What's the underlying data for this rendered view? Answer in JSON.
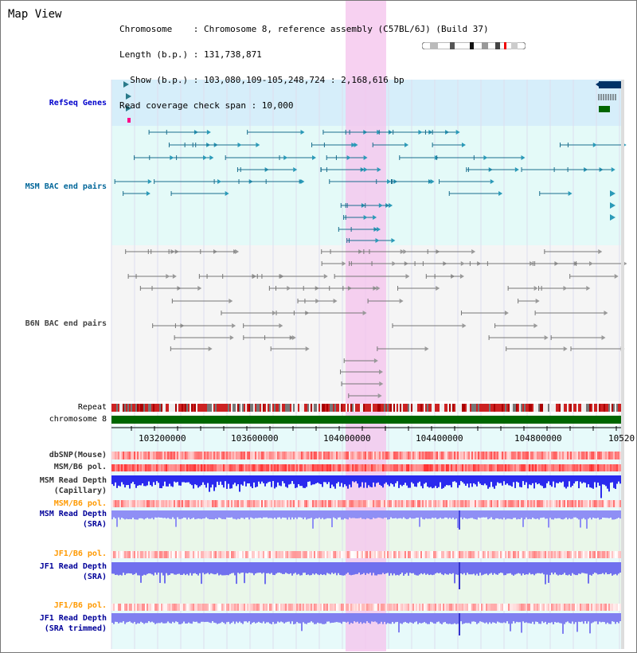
{
  "view_title": "Map View",
  "info": {
    "chromosome": "Chromosome    : Chromosome 8, reference assembly (C57BL/6J) (Build 37)",
    "length": "Length (b.p.) : 131,738,871",
    "show": "  Show (b.p.) : 103,080,109-105,248,724 : 2,168,616 bp",
    "coverage": "Read coverage check span : 10,000"
  },
  "tracks": {
    "refseq": "RefSeq Genes",
    "msm_bac": "MSM BAC end pairs",
    "b6n_bac": "B6N BAC end pairs",
    "repeat": "Repeat",
    "chromosome": "chromosome 8",
    "dbsnp": "dbSNP(Mouse)",
    "msm_b6_pol_1": "MSM/B6 pol.",
    "msm_depth_cap_1": "MSM Read Depth",
    "msm_depth_cap_2": "(Capillary)",
    "msm_b6_pol_2": "MSM/B6 pol.",
    "msm_depth_sra_1": "MSM Read Depth",
    "msm_depth_sra_2": "(SRA)",
    "jf1_pol_1": "JF1/B6 pol.",
    "jf1_depth_sra_1": "JF1 Read Depth",
    "jf1_depth_sra_2": "(SRA)",
    "jf1_pol_2": "JF1/B6 pol.",
    "jf1_depth_trim_1": "JF1 Read Depth",
    "jf1_depth_trim_2": "(SRA trimmed)"
  },
  "axis_ticks": [
    "103200000",
    "103600000",
    "104000000",
    "104400000",
    "104800000",
    "10520"
  ],
  "colors": {
    "refseq_label": "#0000cc",
    "msm_label": "#006699",
    "b6n_label": "#444444",
    "pol_orange_label": "#ff9900",
    "depth_label": "#000099",
    "highlight": "#f5c6ee",
    "refseq_bg": "#d6eefa",
    "msm_bg": "#e4faf8",
    "chrom_bar": "#006600"
  }
}
